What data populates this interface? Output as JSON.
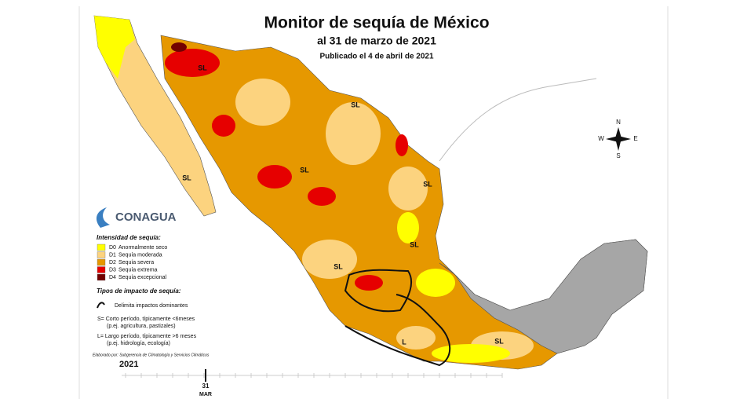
{
  "header": {
    "title": "Monitor de sequía de México",
    "subtitle": "al 31 de marzo de 2021",
    "published": "Publicado el 4 de abril de 2021"
  },
  "logo": "CONAGUA",
  "legend": {
    "intensity_title": "Intensidad de sequía:",
    "items": [
      {
        "code": "D0",
        "label": "Anormalmente seco",
        "color": "#ffff00"
      },
      {
        "code": "D1",
        "label": "Sequía moderada",
        "color": "#fcd37f"
      },
      {
        "code": "D2",
        "label": "Sequía severa",
        "color": "#e69800"
      },
      {
        "code": "D3",
        "label": "Sequía extrema",
        "color": "#e60000"
      },
      {
        "code": "D4",
        "label": "Sequía excepcional",
        "color": "#730000"
      }
    ],
    "impact_title": "Tipos de impacto de sequía:",
    "impact_items": [
      "Delimita impactos dominantes",
      "S= Corto período, típicamente <6meses",
      "(p.ej. agricultura, pastizales)",
      "L= Largo período, típicamente >6 meses",
      "(p.ej. hidrología, ecología)"
    ]
  },
  "credit": "Elaborado por: Subgerencia de Climatología y Servicios Climáticos",
  "timeline": {
    "year": "2021",
    "date": "31",
    "month": "MAR"
  },
  "compass": {
    "n": "N",
    "s": "S",
    "e": "E",
    "w": "W"
  },
  "region_labels": [
    "SL",
    "SL",
    "SL",
    "SL",
    "SL",
    "SL",
    "SL",
    "L",
    "SL"
  ]
}
